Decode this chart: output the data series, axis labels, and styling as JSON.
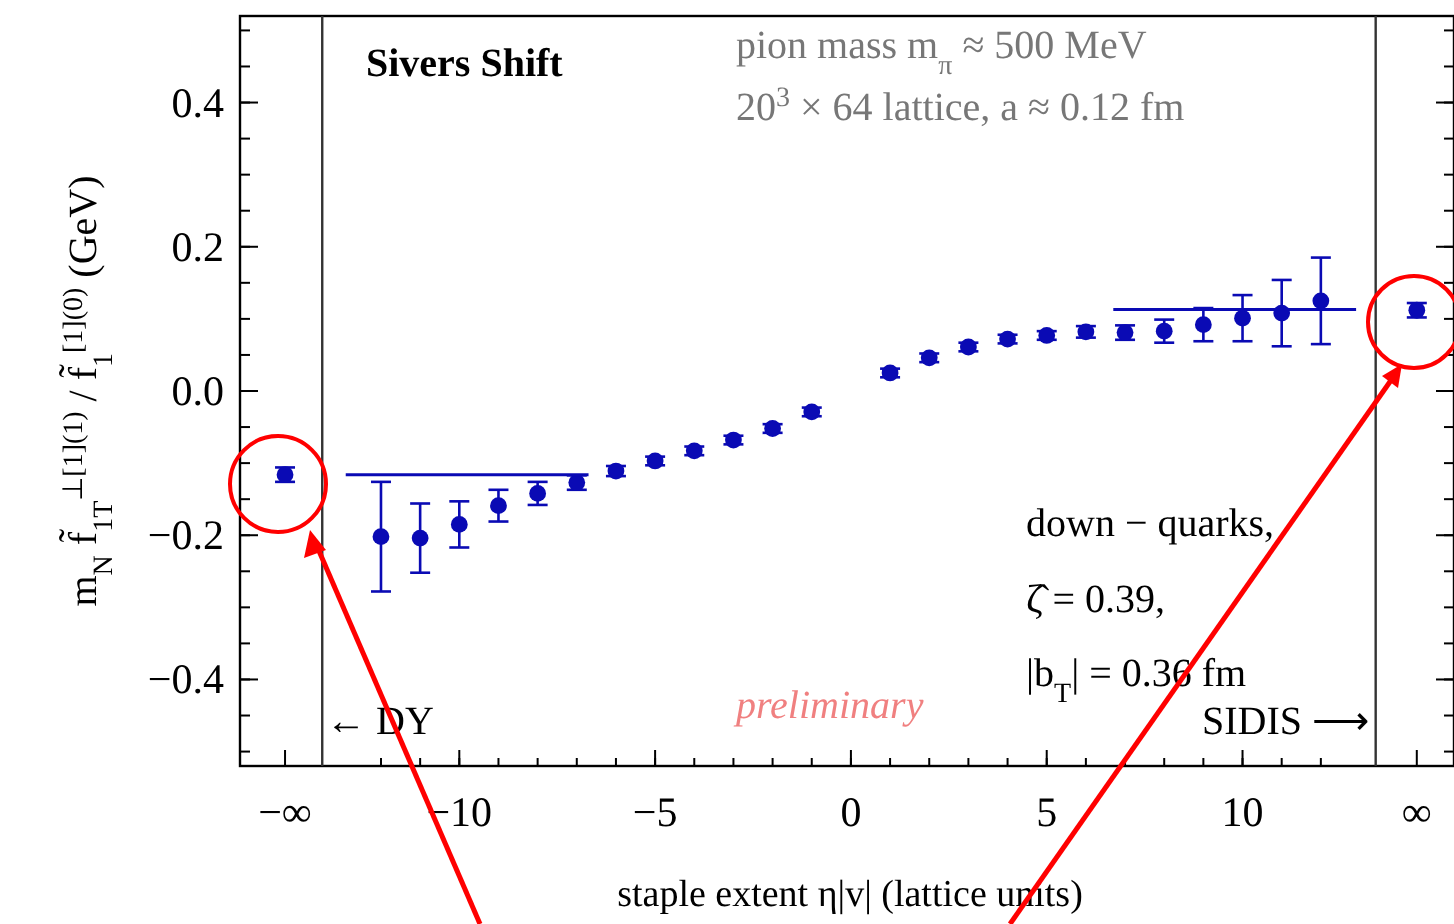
{
  "chart_data": {
    "type": "scatter",
    "title": "Sivers Shift",
    "subtitle": "pion mass m$_{π}$ ≈ 500 MeV\n20$^{3}$ × 64 lattice, a ≈ 0.12 fm",
    "xlabel": "staple extent η|v| (lattice units)",
    "ylabel": "m$_{N}$ f̃$_{1T}$$^{⊥[1](1)}$ / f̃$_{1}$$^{[1](0)}$ (GeV)",
    "xlim": [
      -15.6,
      15.4
    ],
    "ylim": [
      -0.52,
      0.52
    ],
    "xticks": [
      {
        "value": -14.45,
        "label": "−∞"
      },
      {
        "value": -10,
        "label": "−10"
      },
      {
        "value": -5,
        "label": "−5"
      },
      0,
      5,
      10,
      {
        "value": 14.45,
        "label": "∞"
      }
    ],
    "yticks": [
      {
        "value": -0.4,
        "label": "−0.4"
      },
      {
        "value": -0.2,
        "label": "−0.2"
      },
      {
        "value": 0,
        "label": "0.0"
      },
      0.2,
      0.4
    ],
    "grid": false,
    "marker": "circle",
    "series": [
      {
        "color": "#0a0ab4",
        "x": [
          -14.45,
          -12,
          -11,
          -10,
          -9,
          -8,
          -7,
          -6,
          -5,
          -4,
          -3,
          -2,
          -1,
          1,
          2,
          3,
          4,
          5,
          6,
          7,
          8,
          9,
          10,
          11,
          12,
          14.45
        ],
        "values": [
          -0.116,
          -0.202,
          -0.204,
          -0.185,
          -0.159,
          -0.142,
          -0.127,
          -0.111,
          -0.097,
          -0.083,
          -0.068,
          -0.052,
          -0.029,
          0.025,
          0.046,
          0.061,
          0.072,
          0.077,
          0.082,
          0.081,
          0.083,
          0.092,
          0.101,
          0.108,
          0.125,
          0.112
        ],
        "errors": [
          0.01,
          0.076,
          0.048,
          0.032,
          0.022,
          0.016,
          0.01,
          0.007,
          0.006,
          0.006,
          0.006,
          0.006,
          0.006,
          0.006,
          0.006,
          0.006,
          0.006,
          0.006,
          0.008,
          0.01,
          0.016,
          0.023,
          0.032,
          0.046,
          0.06,
          0.01
        ]
      },
      {
        "type": "line",
        "marker": "none",
        "color": "#0a0ab4",
        "x": [
          -12.9,
          -6.7
        ],
        "values": [
          -0.116,
          -0.116
        ]
      },
      {
        "type": "line",
        "marker": "none",
        "color": "#0a0ab4",
        "x": [
          6.7,
          12.9
        ],
        "values": [
          0.113,
          0.113
        ]
      }
    ],
    "ref_lines": [
      {
        "axis": "x",
        "value": -13.5,
        "color": "#333333"
      },
      {
        "axis": "x",
        "value": 13.4,
        "color": "#333333"
      }
    ],
    "annotations": [
      "← DY",
      "SIDIS ⟶",
      "preliminary",
      "down − quarks,",
      "ζ̂ = 0.39,",
      "|b$_{T}$| = 0.36 fm"
    ]
  }
}
